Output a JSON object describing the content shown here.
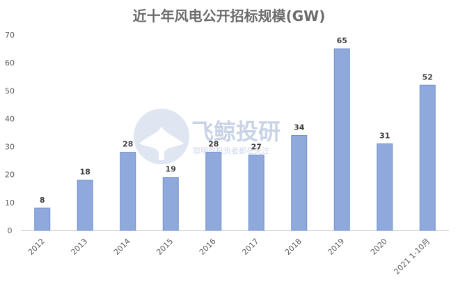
{
  "colors": {
    "bar_fill": "#8fa9dc",
    "bar_stroke": "#6f8fcf",
    "title": "#6b6b6b",
    "text": "#595959",
    "watermark": "#c9d3e6"
  },
  "watermark": {
    "icon": "whale-tail-icon",
    "brand": "飞鲸投研",
    "slogan": "聪明的投资者都在关注"
  },
  "chart_data": {
    "type": "bar",
    "title": "近十年风电公开招标规模(GW)",
    "xlabel": "",
    "ylabel": "",
    "categories": [
      "2012",
      "2013",
      "2014",
      "2015",
      "2016",
      "2017",
      "2018",
      "2019",
      "2020",
      "2021 1-10月"
    ],
    "values": [
      8,
      18,
      28,
      19,
      28,
      27,
      34,
      65,
      31,
      52
    ],
    "data_labels": [
      "8",
      "18",
      "28",
      "19",
      "28",
      "27",
      "34",
      "65",
      "31",
      "52"
    ],
    "ylim": [
      0,
      70
    ],
    "yticks": [
      0,
      10,
      20,
      30,
      40,
      50,
      60,
      70
    ],
    "grid": false,
    "legend": "none"
  }
}
